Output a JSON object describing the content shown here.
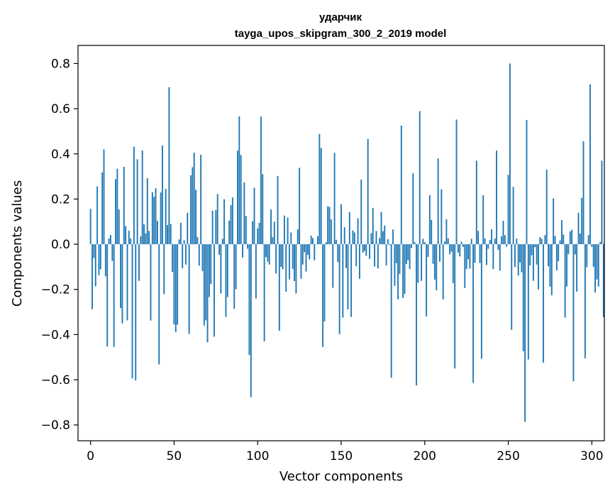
{
  "chart_data": {
    "type": "bar",
    "title": "ударчик",
    "subtitle": "tayga_upos_skipgram_300_2_2019 model",
    "xlabel": "Vector components",
    "ylabel": "Components values",
    "xlim": [
      -7.5,
      307.5
    ],
    "ylim": [
      -0.87,
      0.88
    ],
    "xticks": [
      0,
      50,
      100,
      150,
      200,
      250,
      300
    ],
    "xtick_labels": [
      "0",
      "50",
      "100",
      "150",
      "200",
      "250",
      "300"
    ],
    "yticks": [
      -0.8,
      -0.6,
      -0.4,
      -0.2,
      0.0,
      0.2,
      0.4,
      0.6,
      0.8
    ],
    "ytick_labels": [
      "−0.8",
      "−0.6",
      "−0.4",
      "−0.2",
      "0.0",
      "0.2",
      "0.4",
      "0.6",
      "0.8"
    ],
    "bar_color": "#1f77b4",
    "grid": false,
    "values": [
      0.156,
      -0.288,
      -0.061,
      -0.186,
      0.256,
      -0.137,
      -0.111,
      0.318,
      0.42,
      -0.142,
      -0.453,
      0.026,
      0.041,
      -0.074,
      -0.455,
      0.288,
      0.334,
      0.154,
      -0.283,
      -0.35,
      0.343,
      0.08,
      -0.337,
      0.06,
      0.025,
      -0.594,
      0.432,
      -0.603,
      0.376,
      -0.162,
      0.035,
      0.415,
      0.088,
      0.048,
      0.292,
      0.059,
      -0.338,
      0.23,
      0.21,
      0.248,
      0.103,
      -0.532,
      0.229,
      0.437,
      -0.221,
      0.245,
      0.085,
      0.695,
      0.09,
      -0.123,
      -0.355,
      -0.389,
      -0.356,
      0.021,
      0.095,
      -0.106,
      0.018,
      -0.09,
      0.139,
      -0.397,
      0.305,
      0.341,
      0.405,
      0.241,
      0.032,
      -0.095,
      0.396,
      -0.119,
      -0.36,
      -0.337,
      -0.434,
      -0.234,
      -0.176,
      0.148,
      -0.409,
      0.151,
      0.222,
      -0.047,
      -0.218,
      0.024,
      0.199,
      -0.322,
      -0.234,
      0.104,
      0.173,
      0.207,
      -0.286,
      -0.199,
      0.414,
      0.566,
      0.395,
      -0.059,
      0.274,
      0.125,
      -0.02,
      -0.49,
      -0.677,
      0.102,
      0.25,
      -0.24,
      0.07,
      0.095,
      0.565,
      0.31,
      -0.43,
      -0.057,
      -0.077,
      -0.09,
      0.154,
      0.031,
      0.1,
      -0.13,
      0.302,
      -0.383,
      -0.1,
      -0.111,
      0.127,
      -0.21,
      0.118,
      -0.156,
      0.052,
      -0.11,
      -0.163,
      -0.218,
      0.066,
      0.338,
      -0.153,
      -0.09,
      -0.035,
      -0.121,
      -0.047,
      -0.067,
      0.038,
      0.027,
      -0.071,
      0.002,
      0.036,
      0.488,
      0.426,
      -0.455,
      -0.342,
      0.009,
      0.168,
      0.165,
      0.11,
      -0.193,
      0.404,
      0.02,
      -0.079,
      -0.398,
      0.177,
      -0.325,
      0.075,
      -0.106,
      -0.289,
      0.142,
      -0.322,
      0.061,
      0.052,
      -0.097,
      0.115,
      -0.153,
      0.286,
      -0.037,
      -0.03,
      -0.052,
      0.466,
      -0.065,
      0.049,
      0.161,
      -0.099,
      0.059,
      -0.107,
      0.027,
      0.143,
      0.058,
      0.083,
      -0.094,
      0.022,
      -0.004,
      -0.591,
      0.065,
      -0.184,
      -0.084,
      -0.244,
      -0.132,
      0.525,
      -0.238,
      -0.22,
      -0.088,
      -0.071,
      -0.11,
      -0.017,
      0.314,
      0.009,
      -0.625,
      -0.17,
      0.589,
      -0.162,
      0.024,
      0.009,
      -0.32,
      -0.056,
      0.217,
      0.108,
      -0.087,
      -0.157,
      -0.204,
      0.38,
      -0.077,
      0.243,
      -0.244,
      0.012,
      0.11,
      0.026,
      -0.045,
      -0.033,
      -0.172,
      -0.55,
      0.552,
      -0.037,
      -0.054,
      0.011,
      -0.012,
      -0.194,
      -0.11,
      -0.067,
      -0.108,
      0.024,
      -0.614,
      -0.082,
      0.37,
      0.059,
      -0.083,
      -0.507,
      0.217,
      0.025,
      -0.092,
      -0.02,
      0.019,
      0.066,
      -0.11,
      0.025,
      0.414,
      -0.025,
      -0.117,
      0.035,
      0.104,
      0.04,
      -0.011,
      0.307,
      0.8,
      -0.379,
      0.254,
      -0.101,
      0.025,
      -0.139,
      -0.081,
      -0.124,
      -0.474,
      -0.786,
      0.55,
      -0.51,
      -0.094,
      -0.049,
      -0.162,
      -0.013,
      -0.09,
      -0.2,
      0.031,
      0.024,
      -0.524,
      0.04,
      0.33,
      -0.098,
      -0.188,
      -0.226,
      0.203,
      0.037,
      -0.116,
      -0.075,
      0.017,
      0.107,
      0.043,
      -0.325,
      -0.187,
      -0.044,
      0.057,
      0.064,
      -0.607,
      -0.045,
      -0.21,
      0.139,
      0.047,
      0.205,
      0.456,
      -0.505,
      -0.102,
      0.04,
      0.707,
      -0.011,
      -0.1,
      -0.214,
      -0.156,
      -0.187,
      0.01,
      0.37,
      -0.323
    ]
  }
}
